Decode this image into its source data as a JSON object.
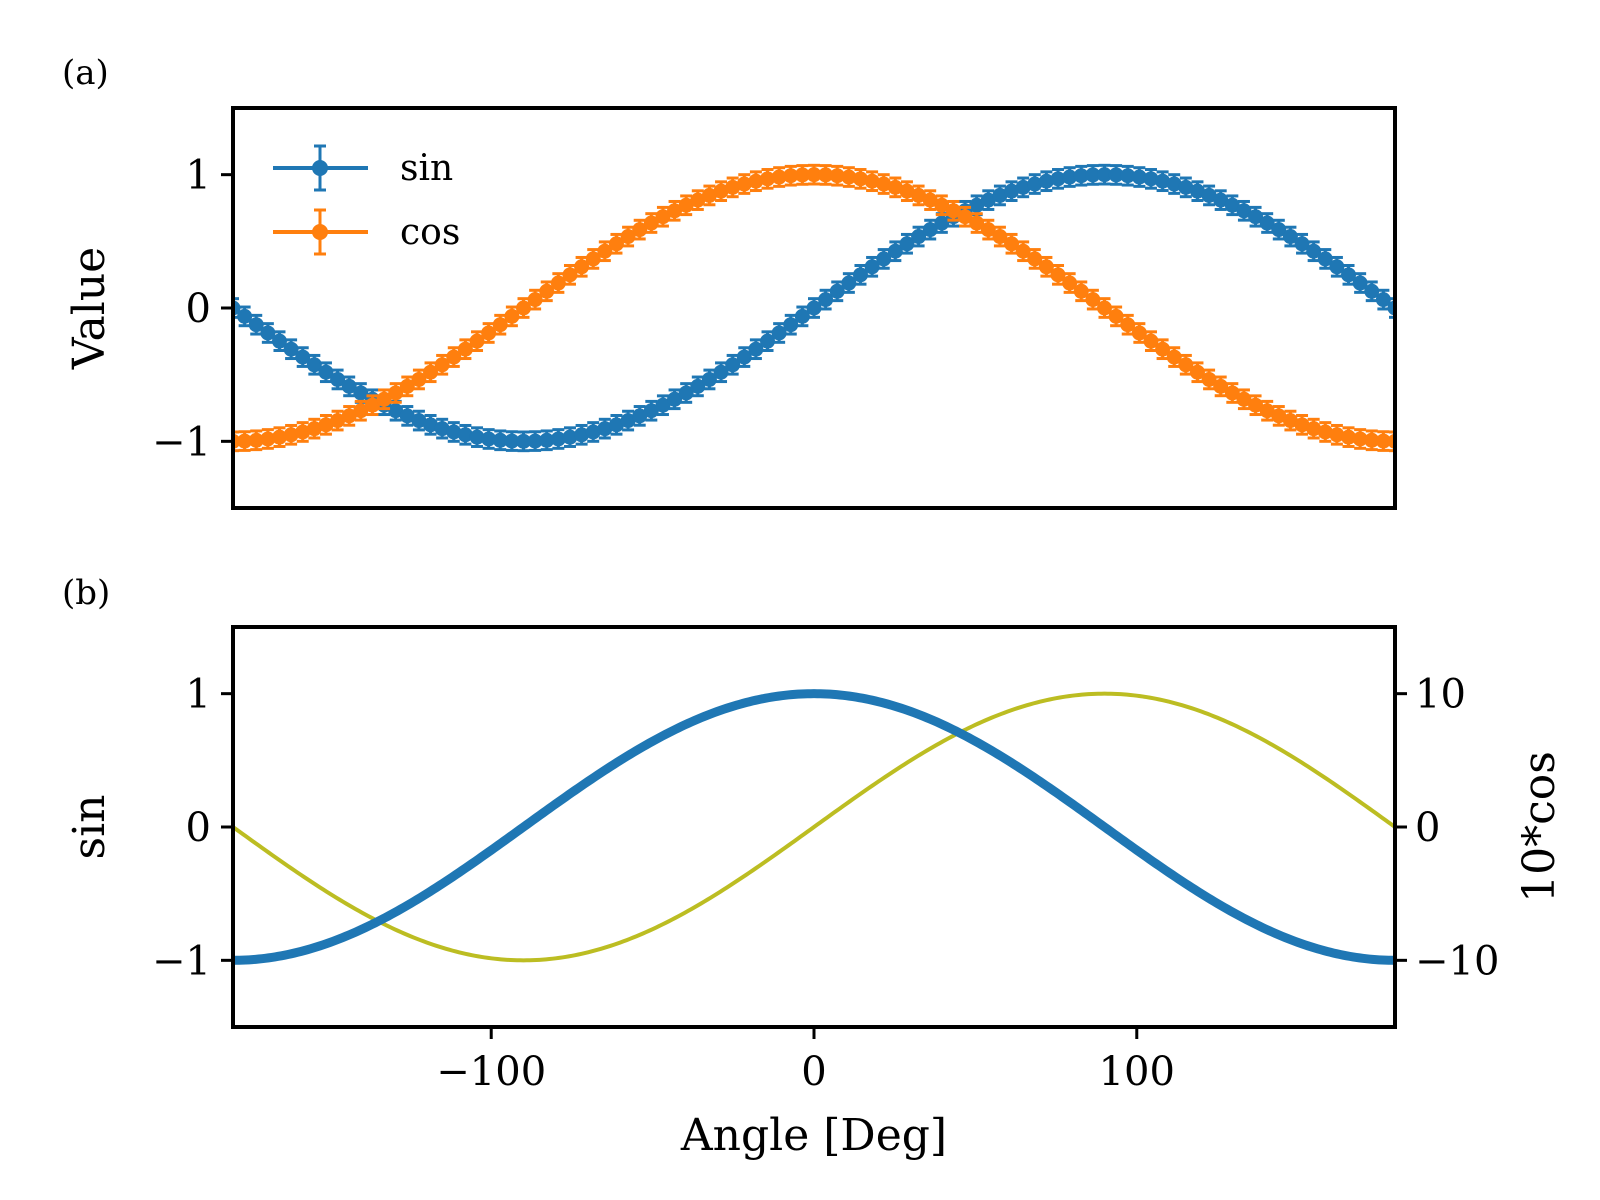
{
  "chart_data": [
    {
      "type": "line",
      "panel_label": "(a)",
      "xlim": [
        -180,
        180
      ],
      "ylim": [
        -1.5,
        1.5
      ],
      "xlabel": "",
      "ylabel": "Value",
      "yticks": [
        {
          "value": 1,
          "label": "1"
        },
        {
          "value": 0,
          "label": "0"
        },
        {
          "value": -1,
          "label": "−1"
        }
      ],
      "legend_position": "upper-left",
      "series": [
        {
          "name": "sin",
          "function": "sin",
          "amplitude": 1,
          "error": 0.07,
          "x_step_deg": 3.6,
          "marker": "circle",
          "errorbars": true,
          "color": "#1f77b4"
        },
        {
          "name": "cos",
          "function": "cos",
          "amplitude": 1,
          "error": 0.07,
          "x_step_deg": 3.6,
          "marker": "circle",
          "errorbars": true,
          "color": "#ff7f0e"
        }
      ]
    },
    {
      "type": "line",
      "panel_label": "(b)",
      "xlim": [
        -180,
        180
      ],
      "ylim": [
        -1.5,
        1.5
      ],
      "y2lim": [
        -15,
        15
      ],
      "xlabel": "Angle [Deg]",
      "ylabel": "sin",
      "y2label": "10*cos",
      "xticks": [
        {
          "value": -100,
          "label": "−100"
        },
        {
          "value": 0,
          "label": "0"
        },
        {
          "value": 100,
          "label": "100"
        }
      ],
      "yticks": [
        {
          "value": 1,
          "label": "1"
        },
        {
          "value": 0,
          "label": "0"
        },
        {
          "value": -1,
          "label": "−1"
        }
      ],
      "y2ticks": [
        {
          "value": 10,
          "label": "10"
        },
        {
          "value": 0,
          "label": "0"
        },
        {
          "value": -10,
          "label": "−10"
        }
      ],
      "series": [
        {
          "function": "sin",
          "amplitude": 1,
          "axis": "left",
          "color": "#bcbd22"
        },
        {
          "function": "cos",
          "amplitude": 10,
          "axis": "right",
          "color": "#1f77b4"
        }
      ]
    }
  ]
}
